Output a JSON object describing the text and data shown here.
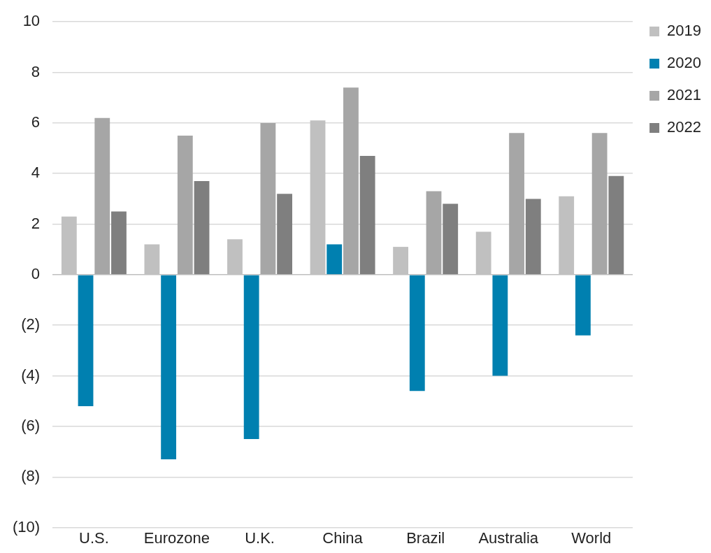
{
  "chart_data": {
    "type": "bar",
    "categories": [
      "U.S.",
      "Eurozone",
      "U.K.",
      "China",
      "Brazil",
      "Australia",
      "World"
    ],
    "series": [
      {
        "name": "2019",
        "color": "#c0c0c0",
        "values": [
          2.3,
          1.2,
          1.4,
          6.1,
          1.1,
          1.7,
          3.1
        ]
      },
      {
        "name": "2020",
        "color": "#0080b0",
        "values": [
          -5.2,
          -7.3,
          -6.5,
          1.2,
          -4.6,
          -4.0,
          -2.4
        ]
      },
      {
        "name": "2021",
        "color": "#a6a6a6",
        "values": [
          6.2,
          5.5,
          6.0,
          7.4,
          3.3,
          5.6,
          5.6
        ]
      },
      {
        "name": "2022",
        "color": "#7f7f7f",
        "values": [
          2.5,
          3.7,
          3.2,
          4.7,
          2.8,
          3.0,
          3.9
        ]
      }
    ],
    "ylim": [
      -10,
      10
    ],
    "yticks": [
      {
        "value": -10,
        "label": "(10)"
      },
      {
        "value": -8,
        "label": "(8)"
      },
      {
        "value": -6,
        "label": "(6)"
      },
      {
        "value": -4,
        "label": "(4)"
      },
      {
        "value": -2,
        "label": "(2)"
      },
      0,
      2,
      4,
      6,
      8,
      10
    ],
    "grid": "y",
    "legend": "top right"
  }
}
